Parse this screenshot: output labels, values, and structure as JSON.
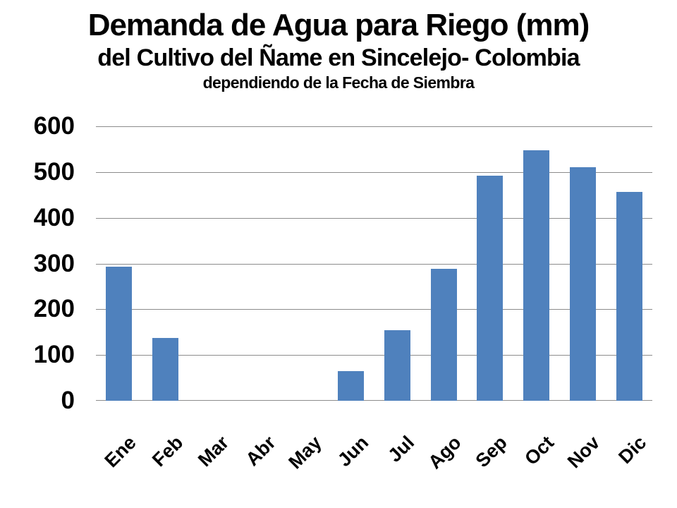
{
  "title": {
    "line1": "Demanda de Agua para Riego (mm)",
    "line2": "del Cultivo del Ñame en Sincelejo- Colombia",
    "line3": "dependiendo de la Fecha de Siembra"
  },
  "chart_data": {
    "type": "bar",
    "title": "Demanda de Agua para Riego (mm)",
    "subtitle": "del Cultivo del Ñame en Sincelejo- Colombia",
    "subtitle2": "dependiendo de la Fecha de Siembra",
    "categories": [
      "Ene",
      "Feb",
      "Mar",
      "Abr",
      "May",
      "Jun",
      "Jul",
      "Ago",
      "Sep",
      "Oct",
      "Nov",
      "Dic"
    ],
    "values": [
      293,
      137,
      0,
      0,
      0,
      65,
      155,
      289,
      492,
      547,
      511,
      456
    ],
    "xlabel": "",
    "ylabel": "",
    "ylim": [
      0,
      600
    ],
    "yticks": [
      0,
      100,
      200,
      300,
      400,
      500,
      600
    ],
    "grid": true,
    "legend": "none",
    "bar_color": "#4f81bd",
    "gridline_color": "#8c8c8c",
    "text_color": "#000000"
  }
}
